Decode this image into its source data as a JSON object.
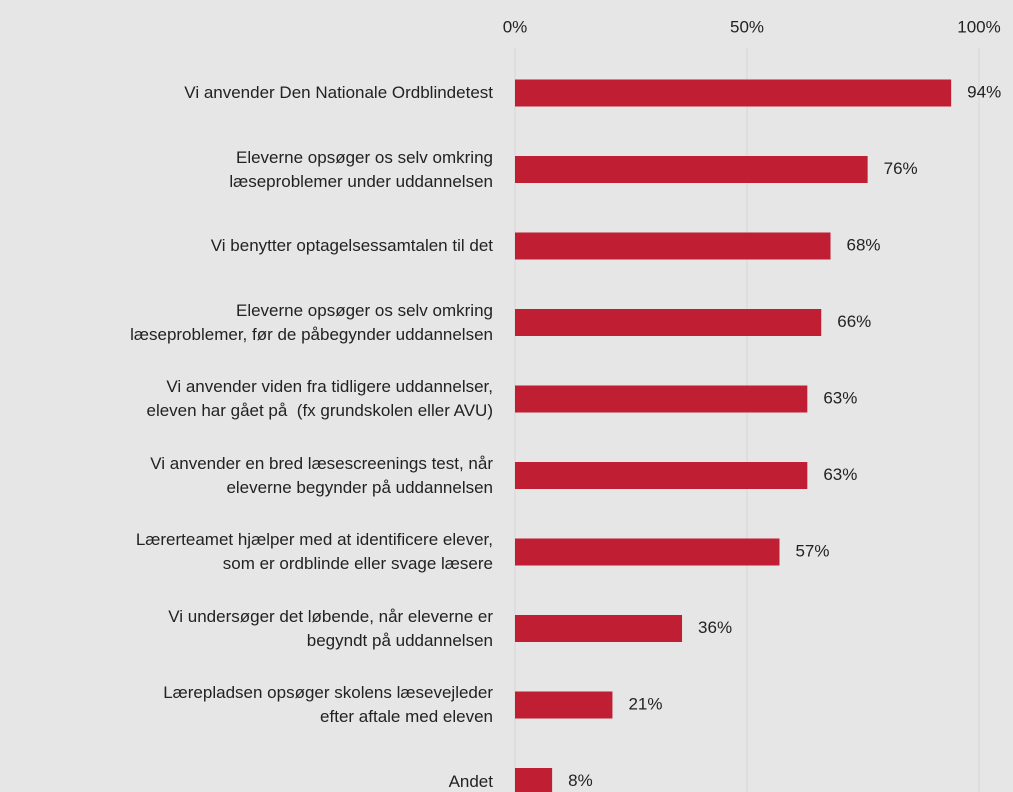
{
  "chart_data": {
    "type": "bar",
    "orientation": "horizontal",
    "categories": [
      "Vi anvender Den Nationale Ordblindetest",
      "Eleverne opsøger os selv omkring\nlæseproblemer under uddannelsen",
      "Vi benytter optagelsessamtalen til det",
      "Eleverne opsøger os selv omkring\nlæseproblemer, før de påbegynder uddannelsen",
      "Vi anvender viden fra tidligere uddannelser,\neleven har gået på  (fx grundskolen eller AVU)",
      "Vi anvender en bred læsescreenings test, når\neleverne begynder på uddannelsen",
      "Lærerteamet hjælper med at identificere elever,\nsom er ordblinde eller svage læsere",
      "Vi undersøger det løbende, når eleverne er\nbegyndt på uddannelsen",
      "Lærepladsen opsøger skolens læsevejleder\nefter aftale med eleven",
      "Andet"
    ],
    "values": [
      94,
      76,
      68,
      66,
      63,
      63,
      57,
      36,
      21,
      8
    ],
    "value_labels": [
      "94%",
      "76%",
      "68%",
      "66%",
      "63%",
      "63%",
      "57%",
      "36%",
      "21%",
      "8%"
    ],
    "color": "#c01f33",
    "xlim": [
      0,
      100
    ],
    "xticks": [
      {
        "value": 0,
        "label": "0%"
      },
      {
        "value": 50,
        "label": "50%"
      },
      {
        "value": 100,
        "label": "100%"
      }
    ],
    "grid": true
  }
}
